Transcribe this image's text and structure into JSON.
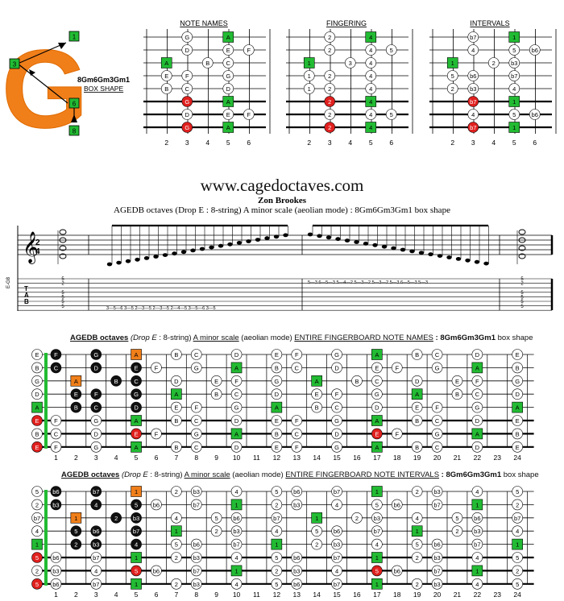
{
  "logo": {
    "letter": "G",
    "shape_name": "8Gm6Gm3Gm1",
    "shape_caption": "BOX SHAPE",
    "markers": [
      "1",
      "3",
      "6",
      "8"
    ]
  },
  "box_diagrams": [
    {
      "title": "NOTE NAMES",
      "kind": "names"
    },
    {
      "title": "FINGERING",
      "kind": "fingers"
    },
    {
      "title": "INTERVALS",
      "kind": "intervals"
    }
  ],
  "box_fret_numbers": [
    "2",
    "3",
    "4",
    "5",
    "6"
  ],
  "site_title": "www.cagedoctaves.com",
  "author": "Zon Brookes",
  "subtitle": "AGEDB octaves (Drop E : 8-string) A minor scale (aeolian mode) : 8Gm6Gm3Gm1 box shape",
  "notation": {
    "tuning_label": "E-G8",
    "time_signature": [
      "2",
      "4"
    ],
    "tab_label": [
      "T",
      "A",
      "B"
    ],
    "tab_line_1": "5",
    "tab_line_2": "2",
    "tab_line_4": "5",
    "tab_line_5": "5",
    "tab_line_6": "5",
    "tab_line_7": "5",
    "tab_run_asc": "3—5—6      3—5      2—3—5      2—3—5      2—4—5      3—5—6      3—5",
    "tab_run_desc": "5—3      6—5—3      5—4—2      5—3—2      5—3—2      5—3      6—5—3      5—3"
  },
  "fingerboard_names": {
    "title_prefix": "AGEDB octaves",
    "title_italic": "(Drop E",
    "title_mid": ": 8-string)",
    "title_scale": "A minor scale",
    "title_mode": "(aeolian mode)",
    "title_section": "ENTIRE FINGERBOARD NOTE NAMES",
    "title_shape": ": 8Gm6Gm3Gm1",
    "title_suffix": "box shape"
  },
  "fingerboard_intervals": {
    "title_prefix": "AGEDB octaves",
    "title_italic": "(Drop E",
    "title_mid": ": 8-string)",
    "title_scale": "A minor scale",
    "title_mode": "(aeolian mode)",
    "title_section": "ENTIRE FINGERBOARD NOTE INTERVALS",
    "title_shape": ": 8Gm6Gm3Gm1",
    "title_suffix": "box shape"
  },
  "fret_numbers": [
    "1",
    "2",
    "3",
    "4",
    "5",
    "6",
    "7",
    "8",
    "9",
    "10",
    "11",
    "12",
    "13",
    "14",
    "15",
    "16",
    "17",
    "18",
    "19",
    "20",
    "21",
    "22",
    "23",
    "24"
  ],
  "colors": {
    "root": "#22bb33",
    "fifth_red": "#e0201e",
    "box_dot": "#111111",
    "highlight": "#f07f1a",
    "logo": "#f07f1a"
  }
}
